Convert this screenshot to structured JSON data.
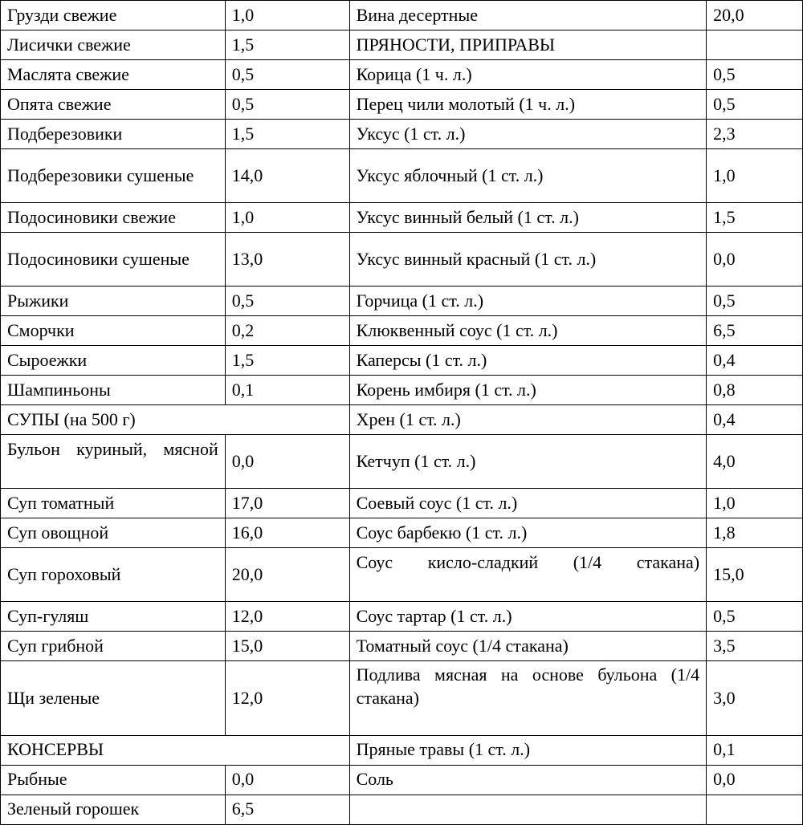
{
  "table": {
    "type": "table",
    "border_color": "#000000",
    "background_color": "#ffffff",
    "text_color": "#000000",
    "font_family": "Times New Roman",
    "font_size_pt": 16,
    "column_widths_pct": [
      28,
      15.5,
      44.5,
      12
    ],
    "rows": [
      {
        "l": "Грузди свежие",
        "lv": "1,0",
        "r": "Вина десертные",
        "rv": "20,0"
      },
      {
        "l": "Лисички свежие",
        "lv": "1,5",
        "r": "ПРЯНОСТИ, ПРИПРАВЫ",
        "rv": "",
        "r_span": 1
      },
      {
        "l": "Маслята свежие",
        "lv": "0,5",
        "r": "Корица (1 ч. л.)",
        "rv": "0,5"
      },
      {
        "l": "Опята свежие",
        "lv": "0,5",
        "r": "Перец чили молотый (1 ч. л.)",
        "rv": "0,5"
      },
      {
        "l": "Подберезовики",
        "lv": "1,5",
        "r": "Уксус (1 ст. л.)",
        "rv": "2,3"
      },
      {
        "l": "Подберезовики сушеные",
        "lv": "14,0",
        "r": "Уксус яблочный (1 ст. л.)",
        "rv": "1,0",
        "l_tall": true
      },
      {
        "l": "Подосиновики свежие",
        "lv": "1,0",
        "r": "Уксус винный белый (1 ст. л.)",
        "rv": "1,5"
      },
      {
        "l": "Подосиновики сушеные",
        "lv": "13,0",
        "r": "Уксус винный красный (1 ст. л.)",
        "rv": "0,0",
        "l_tall": true
      },
      {
        "l": "Рыжики",
        "lv": "0,5",
        "r": "Горчица (1 ст. л.)",
        "rv": "0,5"
      },
      {
        "l": "Сморчки",
        "lv": "0,2",
        "r": "Клюквенный соус (1 ст. л.)",
        "rv": "6,5"
      },
      {
        "l": "Сыроежки",
        "lv": "1,5",
        "r": "Каперсы (1 ст. л.)",
        "rv": "0,4"
      },
      {
        "l": "Шампиньоны",
        "lv": "0,1",
        "r": "Корень имбиря (1 ст. л.)",
        "rv": "0,8"
      },
      {
        "l": "СУПЫ (на 500 г)",
        "lv": null,
        "r": "Хрен (1 ст. л.)",
        "rv": "0,4",
        "l_header": true
      },
      {
        "l": "Бульон куриный, мясной",
        "lv": "0,0",
        "r": "Кетчуп (1 ст. л.)",
        "rv": "4,0",
        "l_justify": true,
        "l_tall": true
      },
      {
        "l": "Суп томатный",
        "lv": "17,0",
        "r": "Соевый соус (1 ст. л.)",
        "rv": "1,0"
      },
      {
        "l": "Суп овощной",
        "lv": "16,0",
        "r": "Соус барбекю (1 ст. л.)",
        "rv": "1,8"
      },
      {
        "l": "Суп гороховый",
        "lv": "20,0",
        "r": "Соус кисло-сладкий (1/4 стакана)",
        "rv": "15,0",
        "r_justify": true,
        "r_tall": true
      },
      {
        "l": "Суп-гуляш",
        "lv": "12,0",
        "r": "Соус тартар (1 ст. л.)",
        "rv": "0,5"
      },
      {
        "l": "Суп грибной",
        "lv": "15,0",
        "r": "Томатный соус (1/4 стакана)",
        "rv": "3,5"
      },
      {
        "l": "Щи зеленые",
        "lv": "12,0",
        "r": "Подлива мясная на основе бульона (1/4 стакана)",
        "rv": "3,0",
        "r_justify": true,
        "r_tall": true
      },
      {
        "l": "КОНСЕРВЫ",
        "lv": null,
        "r": "Пряные травы (1 ст. л.)",
        "rv": "0,1",
        "l_header": true
      },
      {
        "l": "Рыбные",
        "lv": "0,0",
        "r": "Соль",
        "rv": "0,0"
      },
      {
        "l": "Зеленый горошек",
        "lv": "6,5",
        "r": "",
        "rv": ""
      }
    ]
  }
}
